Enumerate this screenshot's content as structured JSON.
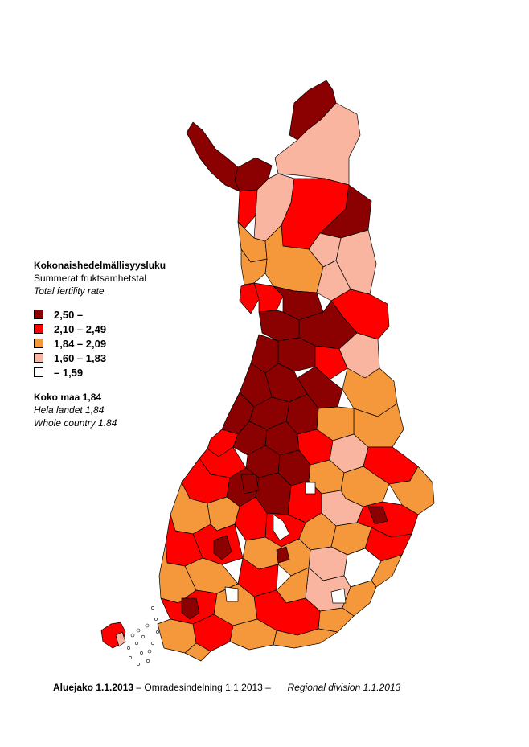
{
  "legend": {
    "title": "Kokonaishedelmällisyysluku",
    "subtitle_sv": "Summerat fruktsamhetstal",
    "subtitle_en": "Total fertility rate",
    "classes": [
      {
        "label": "2,50 –",
        "color": "#8b0000"
      },
      {
        "label": "2,10 – 2,49",
        "color": "#ff0000"
      },
      {
        "label": "1,84 – 2,09",
        "color": "#f5973b"
      },
      {
        "label": "1,60 – 1,83",
        "color": "#f9b5a0"
      },
      {
        "label": "– 1,59",
        "color": "#ffffff"
      }
    ]
  },
  "country": {
    "fi": "Koko maa 1,84",
    "sv": "Hela landet 1,84",
    "en": "Whole country 1.84"
  },
  "footer": {
    "fi": "Aluejako 1.1.2013",
    "sv": "– Omradesindelning 1.1.2013 –",
    "en": "Regional division 1.1.2013"
  }
}
